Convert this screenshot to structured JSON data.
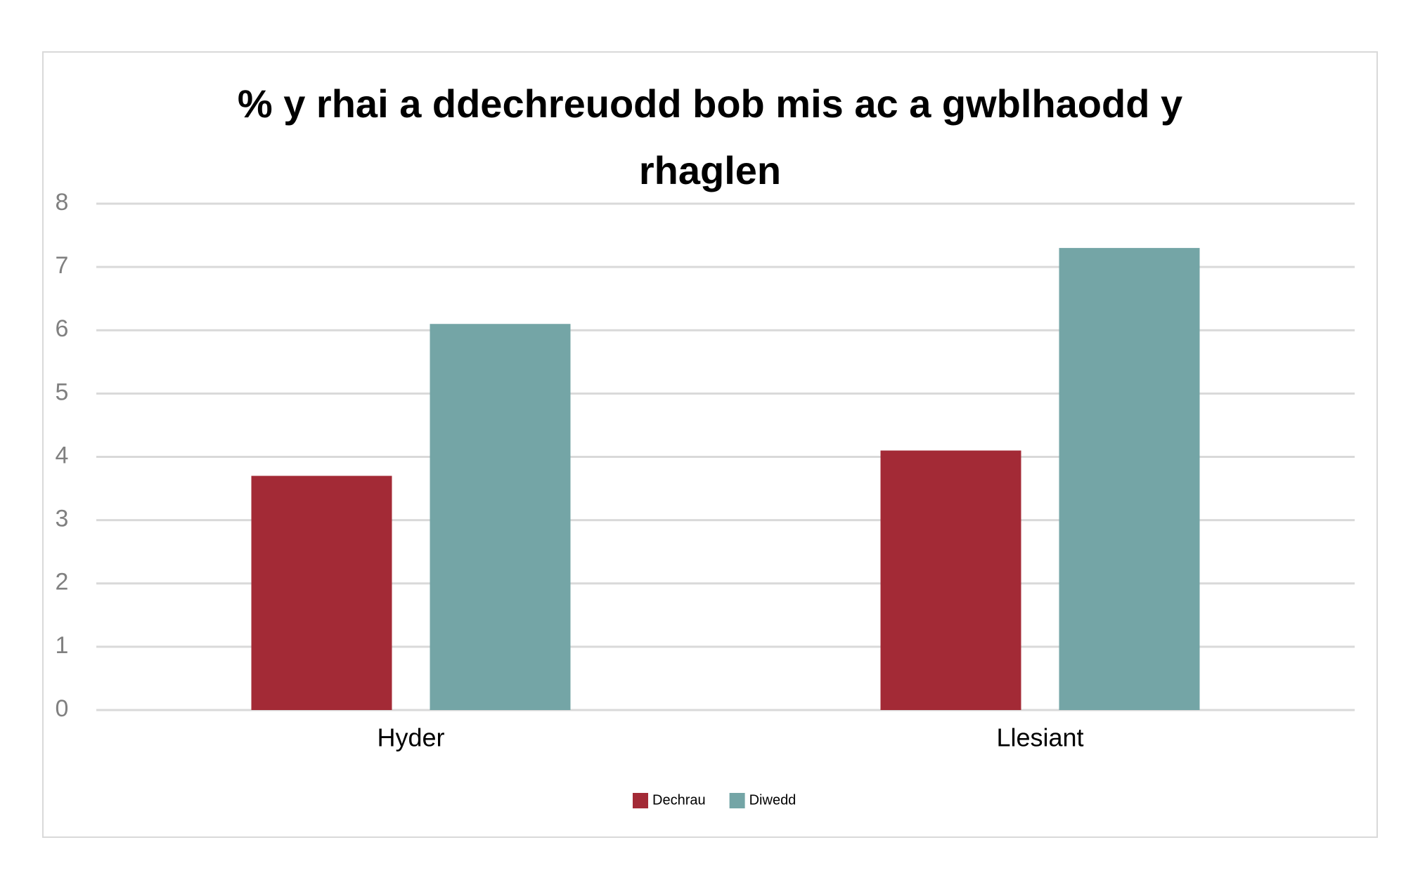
{
  "chart_data": {
    "type": "bar",
    "title": "% y rhai a ddechreuodd bob mis ac a gwblhaodd y rhaglen",
    "categories": [
      "Hyder",
      "Llesiant"
    ],
    "series": [
      {
        "name": "Dechrau",
        "color": "#a32a36",
        "values": [
          3.7,
          4.1
        ]
      },
      {
        "name": "Diwedd",
        "color": "#74a5a6",
        "values": [
          6.1,
          7.3
        ]
      }
    ],
    "ylim": [
      0,
      8
    ],
    "yticks": [
      0,
      1,
      2,
      3,
      4,
      5,
      6,
      7,
      8
    ],
    "grid": true,
    "legend": "bottom"
  }
}
